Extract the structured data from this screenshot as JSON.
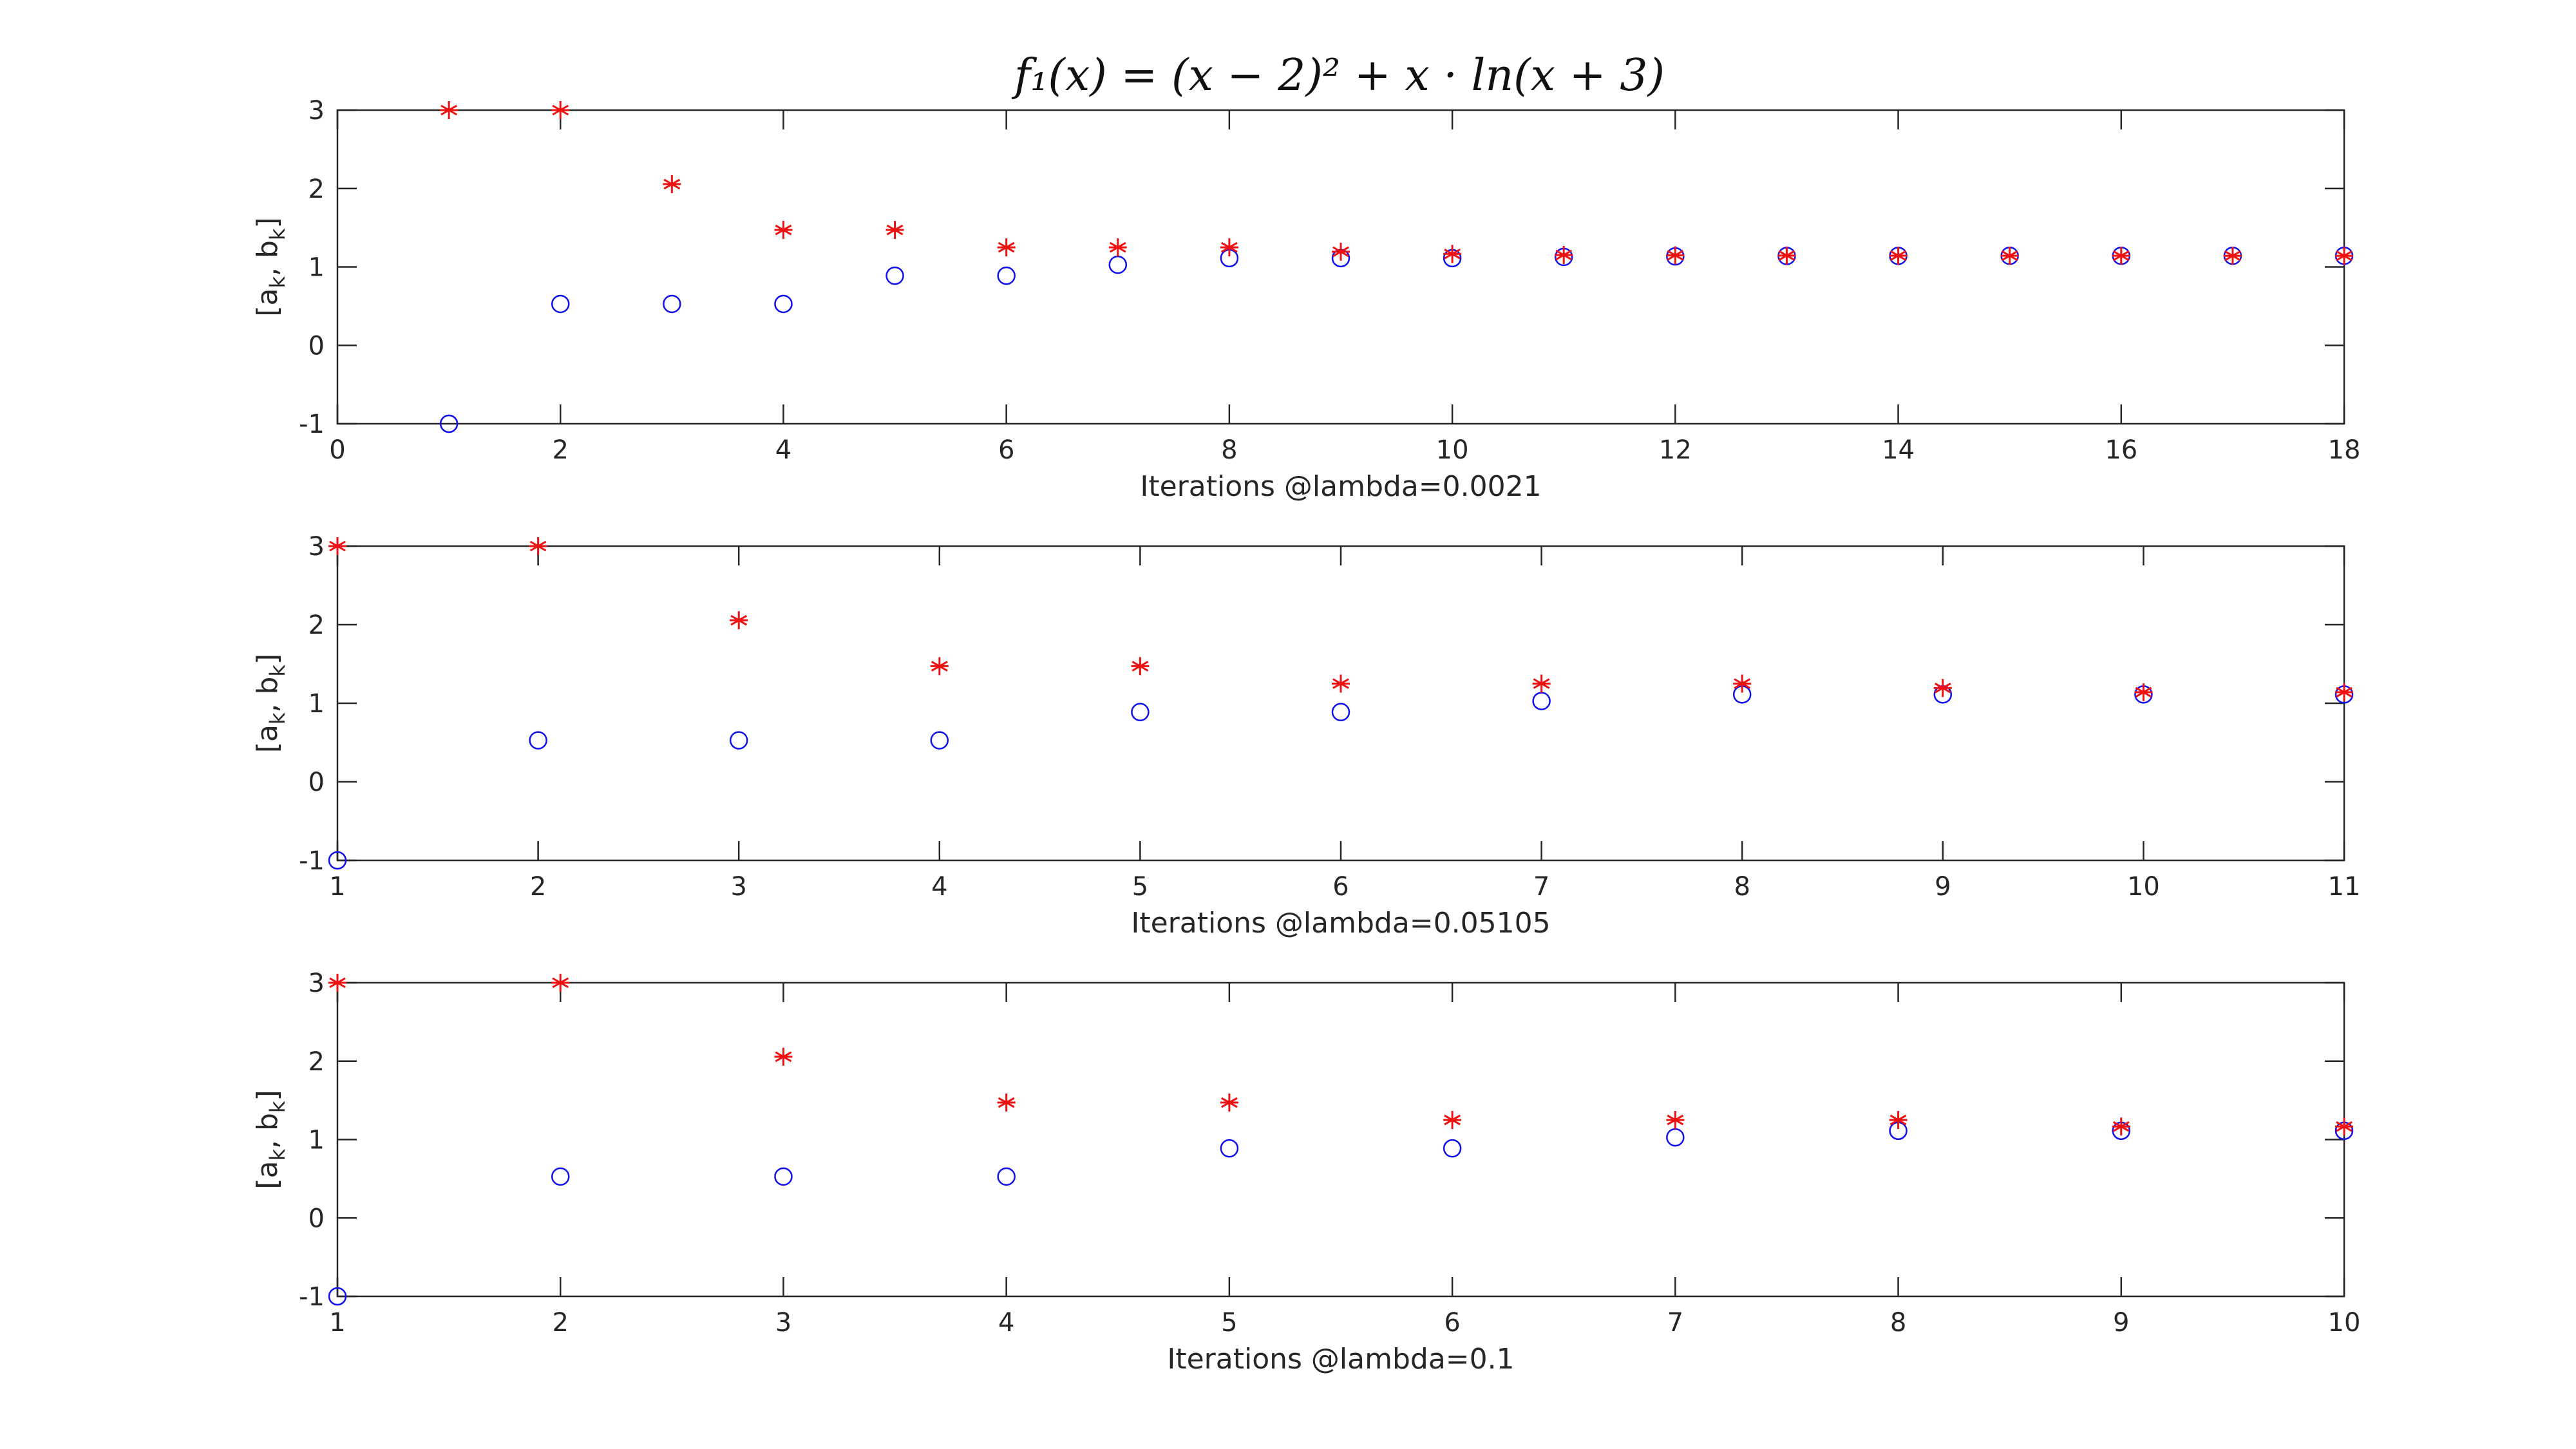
{
  "figure": {
    "title": "f₁(x) = (x − 2)² + x · ln(x + 3)"
  },
  "chart_data": [
    {
      "type": "scatter",
      "xlabel": "Iterations @lambda=0.0021",
      "ylabel_main": "[a",
      "ylabel_sub1": "k",
      "ylabel_mid": ", b",
      "ylabel_sub2": "k",
      "ylabel_end": "]",
      "xlim": [
        0,
        18
      ],
      "ylim": [
        -1,
        3
      ],
      "xticks": [
        0,
        2,
        4,
        6,
        8,
        10,
        12,
        14,
        16,
        18
      ],
      "yticks": [
        -1,
        0,
        1,
        2,
        3
      ],
      "grid": false,
      "series": [
        {
          "marker": "circle",
          "color": "#1010ee",
          "x": [
            1,
            2,
            3,
            4,
            5,
            6,
            7,
            8,
            9,
            10,
            11,
            12,
            13,
            14,
            15,
            16,
            17,
            18
          ],
          "y": [
            -1,
            0.528,
            0.528,
            0.528,
            0.888,
            0.888,
            1.028,
            1.112,
            1.112,
            1.112,
            1.128,
            1.134,
            1.14,
            1.141,
            1.142,
            1.142,
            1.142,
            1.142
          ]
        },
        {
          "marker": "asterisk",
          "color": "#ee1111",
          "x": [
            1,
            2,
            3,
            4,
            5,
            6,
            7,
            8,
            9,
            10,
            11,
            12,
            13,
            14,
            15,
            16,
            17,
            18
          ],
          "y": [
            3,
            3,
            2.056,
            1.472,
            1.472,
            1.25,
            1.25,
            1.25,
            1.194,
            1.166,
            1.152,
            1.148,
            1.145,
            1.144,
            1.143,
            1.143,
            1.142,
            1.142
          ]
        }
      ]
    },
    {
      "type": "scatter",
      "xlabel": "Iterations @lambda=0.05105",
      "ylabel_main": "[a",
      "ylabel_sub1": "k",
      "ylabel_mid": ", b",
      "ylabel_sub2": "k",
      "ylabel_end": "]",
      "xlim": [
        1,
        11
      ],
      "ylim": [
        -1,
        3
      ],
      "xticks": [
        1,
        2,
        3,
        4,
        5,
        6,
        7,
        8,
        9,
        10,
        11
      ],
      "yticks": [
        -1,
        0,
        1,
        2,
        3
      ],
      "grid": false,
      "series": [
        {
          "marker": "circle",
          "color": "#1010ee",
          "x": [
            1,
            2,
            3,
            4,
            5,
            6,
            7,
            8,
            9,
            10,
            11
          ],
          "y": [
            -1,
            0.528,
            0.528,
            0.528,
            0.888,
            0.888,
            1.028,
            1.112,
            1.112,
            1.112,
            1.112
          ]
        },
        {
          "marker": "asterisk",
          "color": "#ee1111",
          "x": [
            1,
            2,
            3,
            4,
            5,
            6,
            7,
            8,
            9,
            10,
            11
          ],
          "y": [
            3,
            3,
            2.056,
            1.472,
            1.472,
            1.25,
            1.25,
            1.25,
            1.194,
            1.14,
            1.14
          ]
        }
      ]
    },
    {
      "type": "scatter",
      "xlabel": "Iterations @lambda=0.1",
      "ylabel_main": "[a",
      "ylabel_sub1": "k",
      "ylabel_mid": ", b",
      "ylabel_sub2": "k",
      "ylabel_end": "]",
      "xlim": [
        1,
        10
      ],
      "ylim": [
        -1,
        3
      ],
      "xticks": [
        1,
        2,
        3,
        4,
        5,
        6,
        7,
        8,
        9,
        10
      ],
      "yticks": [
        -1,
        0,
        1,
        2,
        3
      ],
      "grid": false,
      "series": [
        {
          "marker": "circle",
          "color": "#1010ee",
          "x": [
            1,
            2,
            3,
            4,
            5,
            6,
            7,
            8,
            9,
            10
          ],
          "y": [
            -1,
            0.528,
            0.528,
            0.528,
            0.888,
            0.888,
            1.028,
            1.112,
            1.112,
            1.112
          ]
        },
        {
          "marker": "asterisk",
          "color": "#ee1111",
          "x": [
            1,
            2,
            3,
            4,
            5,
            6,
            7,
            8,
            9,
            10
          ],
          "y": [
            3,
            3,
            2.056,
            1.472,
            1.472,
            1.25,
            1.25,
            1.25,
            1.166,
            1.166
          ]
        }
      ]
    }
  ]
}
